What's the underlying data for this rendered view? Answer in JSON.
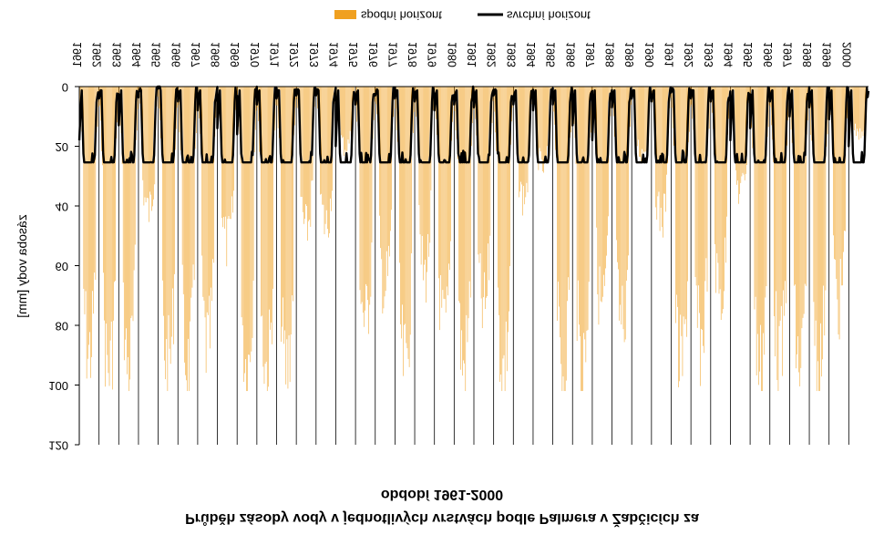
{
  "chart_data": {
    "type": "bar",
    "title_lines": [
      "Průběh zásoby vody v jednotlivých vrstvách podle Palmera v Žabčicích za",
      "období 1961-2000"
    ],
    "ylabel": "zásoba vody [mm]",
    "xlabel": "",
    "ylim": [
      0,
      120
    ],
    "y_ticks": [
      0,
      20,
      40,
      60,
      80,
      100,
      120
    ],
    "y_axis_direction": "values increase downward from the top axis",
    "x_year_labels": [
      "1961",
      "1962",
      "1963",
      "1964",
      "1965",
      "1966",
      "1967",
      "1968",
      "1969",
      "1970",
      "1971",
      "1972",
      "1973",
      "1974",
      "1975",
      "1976",
      "1977",
      "1978",
      "1979",
      "1980",
      "1981",
      "1982",
      "1983",
      "1984",
      "1985",
      "1986",
      "1987",
      "1988",
      "1989",
      "1990",
      "1991",
      "1992",
      "1993",
      "1994",
      "1995",
      "1996",
      "1997",
      "1998",
      "1999",
      "2000"
    ],
    "x_axis_position": "top",
    "grid": "vertical lines at each year boundary",
    "legend": {
      "position": "top-center"
    },
    "series": [
      {
        "name": "spodní horizont",
        "type": "bar",
        "color": "#f0a020",
        "annual_min": [
          97,
          102,
          102,
          45,
          102,
          102,
          95,
          57,
          102,
          102,
          102,
          52,
          50,
          22,
          85,
          73,
          102,
          68,
          89,
          102,
          82,
          102,
          40,
          30,
          102,
          102,
          80,
          86,
          24,
          48,
          102,
          93,
          76,
          38,
          102,
          99,
          102,
          102,
          78,
          18
        ]
      },
      {
        "name": "svrchní horizont",
        "type": "line",
        "color": "#000000",
        "max_value": 25.4,
        "annual_dip": [
          18,
          4,
          13,
          2,
          0,
          5,
          8,
          14,
          16,
          6,
          4,
          3,
          3,
          20,
          6,
          3,
          4,
          5,
          8,
          6,
          7,
          3,
          6,
          8,
          6,
          13,
          18,
          7,
          4,
          5,
          2,
          4,
          5,
          18,
          14,
          5,
          10,
          7,
          11,
          20
        ]
      }
    ]
  }
}
